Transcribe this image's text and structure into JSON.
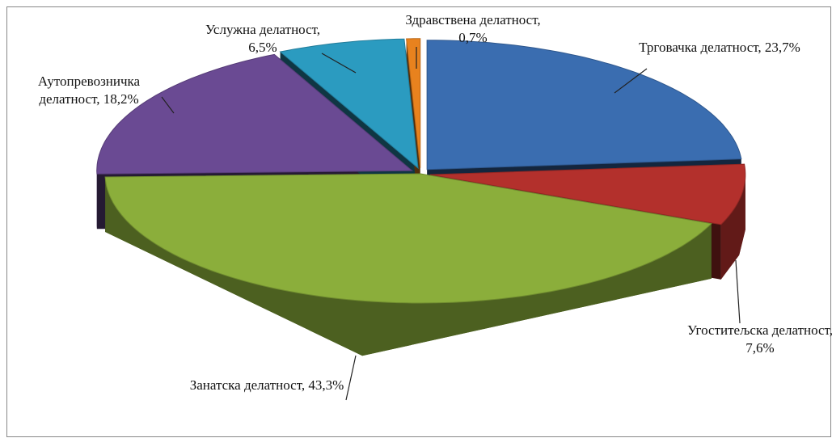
{
  "chart_data": {
    "type": "pie",
    "values": [
      23.7,
      7.6,
      43.3,
      18.2,
      6.5,
      0.7
    ],
    "value_labels": [
      "Трговачка делатност, 23,7%",
      "Угоститељска делатност, 7,6%",
      "Занатска делатност, 43,3%",
      "Аутопревозничка делатност, 18,2%",
      "Услужна делатност, 6,5%",
      "Здравствена делатност, 0,7%"
    ],
    "colors": [
      "#3a6db0",
      "#b3302c",
      "#8bae3b",
      "#6a4a93",
      "#2b9bc0",
      "#e8821e"
    ]
  }
}
